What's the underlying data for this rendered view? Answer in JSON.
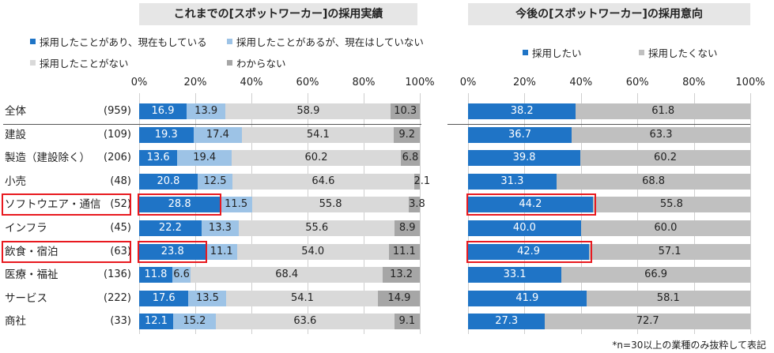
{
  "colors": {
    "adopted_current": "#1f74c6",
    "adopted_past": "#9dc3e6",
    "never": "#d9d9d9",
    "unknown": "#a6a6a6",
    "want": "#1f74c6",
    "not_want": "#c0c0c0",
    "highlight": "#e8191f"
  },
  "footnote": "*n=30以上の業種のみ抜粋して表記",
  "chart_data": [
    {
      "type": "bar",
      "orientation": "horizontal",
      "stacked": true,
      "title": "これまでの[スポットワーカー]の採用実績",
      "xlim": [
        0,
        100
      ],
      "ticks": [
        "0%",
        "20%",
        "40%",
        "60%",
        "80%",
        "100%"
      ],
      "legend": [
        {
          "label": "採用したことがあり、現在もしている",
          "color_key": "adopted_current"
        },
        {
          "label": "採用したことがあるが、現在はしていない",
          "color_key": "adopted_past"
        },
        {
          "label": "採用したことがない",
          "color_key": "never"
        },
        {
          "label": "わからない",
          "color_key": "unknown"
        }
      ],
      "categories": [
        "全体",
        "建設",
        "製造（建設除く）",
        "小売",
        "ソフトウエア・通信",
        "インフラ",
        "飲食・宿泊",
        "医療・福祉",
        "サービス",
        "商社"
      ],
      "n_labels": [
        "(959)",
        "(109)",
        "(206)",
        "(48)",
        "(52)",
        "(45)",
        "(63)",
        "(136)",
        "(222)",
        "(33)"
      ],
      "highlighted": [
        4,
        6
      ],
      "series": [
        {
          "name": "採用したことがあり、現在もしている",
          "values": [
            16.9,
            19.3,
            13.6,
            20.8,
            28.8,
            22.2,
            23.8,
            11.8,
            17.6,
            12.1
          ]
        },
        {
          "name": "採用したことがあるが、現在はしていない",
          "values": [
            13.9,
            17.4,
            19.4,
            12.5,
            11.5,
            13.3,
            11.1,
            6.6,
            13.5,
            15.2
          ]
        },
        {
          "name": "採用したことがない",
          "values": [
            58.9,
            54.1,
            60.2,
            64.6,
            55.8,
            55.6,
            54.0,
            68.4,
            54.1,
            63.6
          ]
        },
        {
          "name": "わからない",
          "values": [
            10.3,
            9.2,
            6.8,
            2.1,
            3.8,
            8.9,
            11.1,
            13.2,
            14.9,
            9.1
          ]
        }
      ],
      "label_texts": [
        [
          "16.9",
          "19.3",
          "13.6",
          "20.8",
          "28.8",
          "22.2",
          "23.8",
          "11.8",
          "17.6",
          "12.1"
        ],
        [
          "13.9",
          "17.4",
          "19.4",
          "12.5",
          "11.5",
          "13.3",
          "11.1",
          "6.6",
          "13.5",
          "15.2"
        ],
        [
          "58.9",
          "54.1",
          "60.2",
          "64.6",
          "55.8",
          "55.6",
          "54.0",
          "68.4",
          "54.1",
          "63.6"
        ],
        [
          "10.3",
          "9.2",
          "6.8",
          "2.1",
          "3.8",
          "8.9",
          "11.1",
          "13.2",
          "14.9",
          "9.1"
        ]
      ]
    },
    {
      "type": "bar",
      "orientation": "horizontal",
      "stacked": true,
      "title": "今後の[スポットワーカー]の採用意向",
      "xlim": [
        0,
        100
      ],
      "ticks": [
        "0%",
        "20%",
        "40%",
        "60%",
        "80%",
        "100%"
      ],
      "legend": [
        {
          "label": "採用したい",
          "color_key": "want"
        },
        {
          "label": "採用したくない",
          "color_key": "not_want"
        }
      ],
      "highlighted": [
        4,
        6
      ],
      "series": [
        {
          "name": "採用したい",
          "values": [
            38.2,
            36.7,
            39.8,
            31.3,
            44.2,
            40.0,
            42.9,
            33.1,
            41.9,
            27.3
          ]
        },
        {
          "name": "採用したくない",
          "values": [
            61.8,
            63.3,
            60.2,
            68.8,
            55.8,
            60.0,
            57.1,
            66.9,
            58.1,
            72.7
          ]
        }
      ],
      "label_texts": [
        [
          "38.2",
          "36.7",
          "39.8",
          "31.3",
          "44.2",
          "40.0",
          "42.9",
          "33.1",
          "41.9",
          "27.3"
        ],
        [
          "61.8",
          "63.3",
          "60.2",
          "68.8",
          "55.8",
          "60.0",
          "57.1",
          "66.9",
          "58.1",
          "72.7"
        ]
      ]
    }
  ]
}
